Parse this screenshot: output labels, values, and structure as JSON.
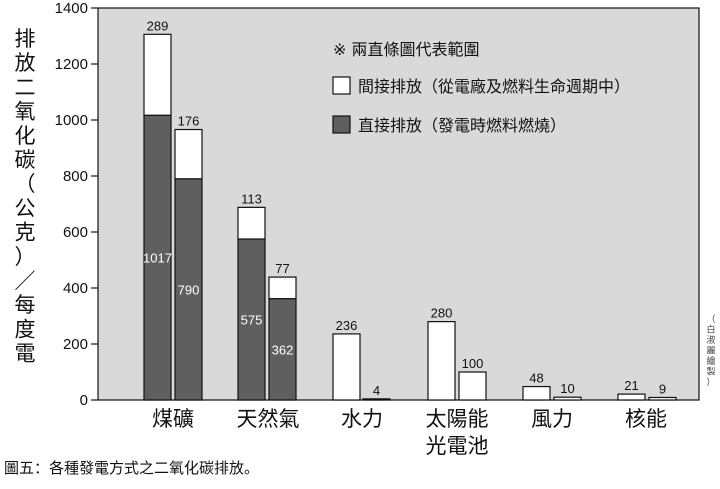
{
  "chart_data": {
    "type": "bar",
    "stacked": true,
    "categories": [
      "煤礦",
      "天然氣",
      "水力",
      "太陽能\n光電池",
      "風力",
      "核能"
    ],
    "series": [
      {
        "name": "直接排放（發電時燃料燃燒）",
        "color": "#5f5f5f",
        "values": [
          [
            1017,
            0
          ],
          [
            575,
            0
          ],
          null,
          null,
          null,
          null
        ],
        "labels": [
          [
            "1017",
            "790"
          ],
          [
            "575",
            "362"
          ],
          null,
          null,
          null,
          null
        ],
        "values2": [
          790,
          362,
          0,
          0,
          0,
          0
        ]
      },
      {
        "name": "間接排放（從電廠及燃料生命週期中）",
        "color": "#ffffff",
        "values": [
          289,
          113,
          236,
          280,
          48,
          21
        ],
        "values2": [
          176,
          77,
          4,
          100,
          10,
          9
        ]
      }
    ],
    "bars": [
      {
        "category": 0,
        "direct": 1017,
        "indirect": 289,
        "direct_label": "1017",
        "indirect_label": "289"
      },
      {
        "category": 0,
        "direct": 790,
        "indirect": 176,
        "direct_label": "790",
        "indirect_label": "176"
      },
      {
        "category": 1,
        "direct": 575,
        "indirect": 113,
        "direct_label": "575",
        "indirect_label": "113"
      },
      {
        "category": 1,
        "direct": 362,
        "indirect": 77,
        "direct_label": "362",
        "indirect_label": "77"
      },
      {
        "category": 2,
        "direct": 0,
        "indirect": 236,
        "direct_label": "",
        "indirect_label": "236"
      },
      {
        "category": 2,
        "direct": 0,
        "indirect": 4,
        "direct_label": "",
        "indirect_label": "4"
      },
      {
        "category": 3,
        "direct": 0,
        "indirect": 280,
        "direct_label": "",
        "indirect_label": "280"
      },
      {
        "category": 3,
        "direct": 0,
        "indirect": 100,
        "direct_label": "",
        "indirect_label": "100"
      },
      {
        "category": 4,
        "direct": 0,
        "indirect": 48,
        "direct_label": "",
        "indirect_label": "48"
      },
      {
        "category": 4,
        "direct": 0,
        "indirect": 10,
        "direct_label": "",
        "indirect_label": "10"
      },
      {
        "category": 5,
        "direct": 0,
        "indirect": 21,
        "direct_label": "",
        "indirect_label": "21"
      },
      {
        "category": 5,
        "direct": 0,
        "indirect": 9,
        "direct_label": "",
        "indirect_label": "9"
      }
    ],
    "ylim": [
      0,
      1400
    ],
    "yticks": [
      0,
      200,
      400,
      600,
      800,
      1000,
      1200,
      1400
    ],
    "ylabel": "排放二氧化碳（公克）／每度電",
    "legend": {
      "note": "※ 兩直條圖代表範圍",
      "items": [
        {
          "label": "間接排放（從電廠及燃料生命週期中）",
          "color": "#ffffff"
        },
        {
          "label": "直接排放（發電時燃料燃燒）",
          "color": "#5f5f5f"
        }
      ],
      "placement": "top-right"
    },
    "plot_background": "#d9d9d9",
    "grid": false
  },
  "caption": "圖五：各種發電方式之二氧化碳排放。",
  "credit": "（白淑麗繪製）"
}
